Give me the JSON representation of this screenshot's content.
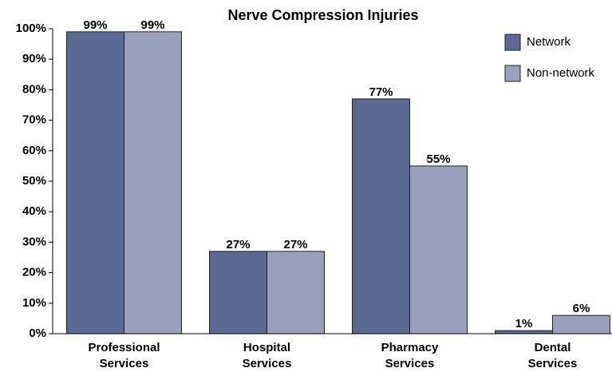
{
  "chart_data": {
    "type": "bar",
    "title": "Nerve Compression Injuries",
    "categories": [
      "Professional Services",
      "Hospital Services",
      "Pharmacy Services",
      "Dental Services"
    ],
    "series": [
      {
        "name": "Network",
        "color": "#5b6891",
        "values": [
          99,
          27,
          77,
          1
        ],
        "value_labels": [
          "99%",
          "27%",
          "77%",
          "1%"
        ]
      },
      {
        "name": "Non-network",
        "color": "#9aa0bc",
        "values": [
          99,
          27,
          55,
          6
        ],
        "value_labels": [
          "99%",
          "27%",
          "55%",
          "6%"
        ]
      }
    ],
    "ylim": [
      0,
      100
    ],
    "yticks": [
      {
        "value": 0,
        "label": "0%"
      },
      {
        "value": 10,
        "label": "10%"
      },
      {
        "value": 20,
        "label": "20%"
      },
      {
        "value": 30,
        "label": "30%"
      },
      {
        "value": 40,
        "label": "40%"
      },
      {
        "value": 50,
        "label": "50%"
      },
      {
        "value": 60,
        "label": "60%"
      },
      {
        "value": 70,
        "label": "70%"
      },
      {
        "value": 80,
        "label": "80%"
      },
      {
        "value": 90,
        "label": "90%"
      },
      {
        "value": 100,
        "label": "100%"
      }
    ],
    "legend": "top-right",
    "grid": false
  }
}
